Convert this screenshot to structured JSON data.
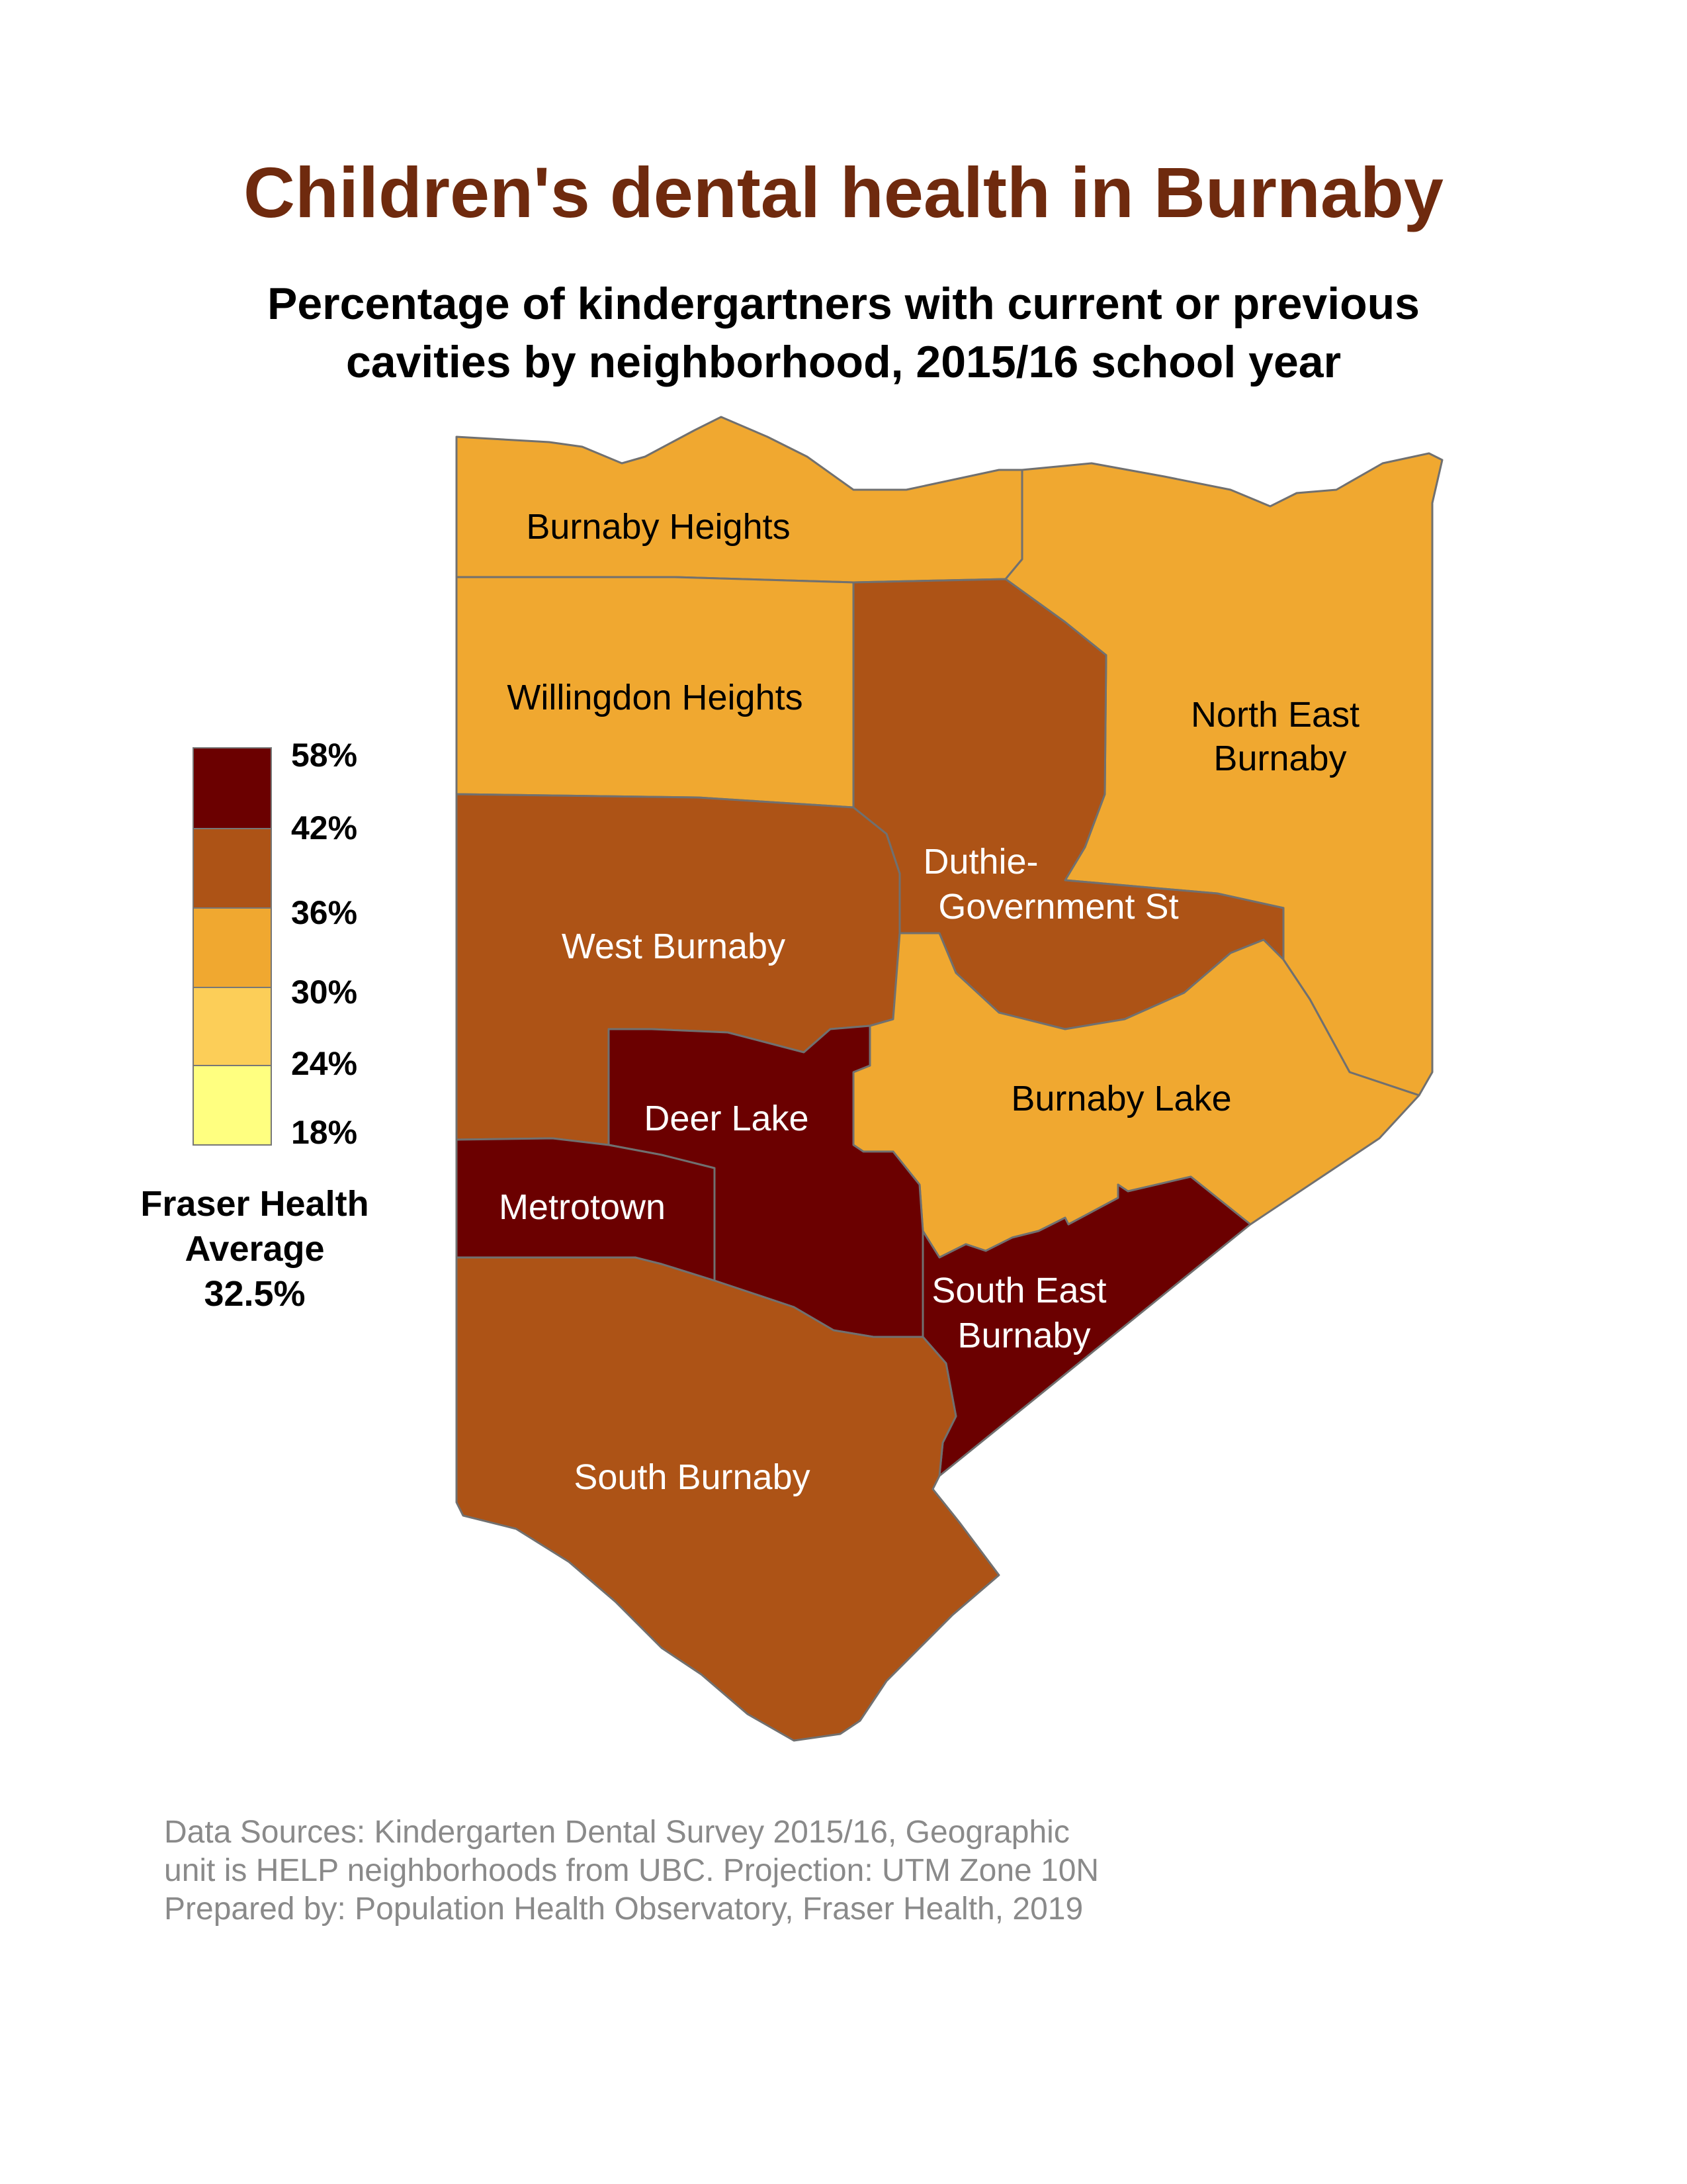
{
  "title": "Children's dental health in Burnaby",
  "subtitle": [
    "Percentage of kindergartners with current or previous",
    "cavities by neighborhood, 2015/16 school year"
  ],
  "legend": {
    "breaks": [
      "58%",
      "42%",
      "36%",
      "30%",
      "24%",
      "18%"
    ],
    "colors": [
      "#6b0000",
      "#ad5316",
      "#f0a830",
      "#fcce58",
      "#ffff80"
    ]
  },
  "average": {
    "line1": "Fraser Health",
    "line2": "Average",
    "line3": "32.5%"
  },
  "neighborhoods": {
    "burnaby_heights": {
      "label": [
        "Burnaby Heights"
      ],
      "color": "#f0a830"
    },
    "willingdon_heights": {
      "label": [
        "Willingdon Heights"
      ],
      "color": "#f0a830"
    },
    "north_east_burnaby": {
      "label": [
        "North East",
        "Burnaby"
      ],
      "color": "#f0a830"
    },
    "duthie_government": {
      "label": [
        "Duthie-",
        "Government St"
      ],
      "color": "#ad5316"
    },
    "west_burnaby": {
      "label": [
        "West Burnaby"
      ],
      "color": "#ad5316"
    },
    "burnaby_lake": {
      "label": [
        "Burnaby Lake"
      ],
      "color": "#f0a830"
    },
    "deer_lake": {
      "label": [
        "Deer Lake"
      ],
      "color": "#6b0000"
    },
    "metrotown": {
      "label": [
        "Metrotown"
      ],
      "color": "#6b0000"
    },
    "south_east_burnaby": {
      "label": [
        "South East",
        "Burnaby"
      ],
      "color": "#6b0000"
    },
    "south_burnaby": {
      "label": [
        "South Burnaby"
      ],
      "color": "#ad5316"
    }
  },
  "sources": [
    "Data Sources: Kindergarten Dental Survey 2015/16, Geographic",
    "unit is HELP neighborhoods from UBC. Projection: UTM Zone 10N",
    "Prepared by: Population Health Observatory, Fraser Health, 2019"
  ]
}
